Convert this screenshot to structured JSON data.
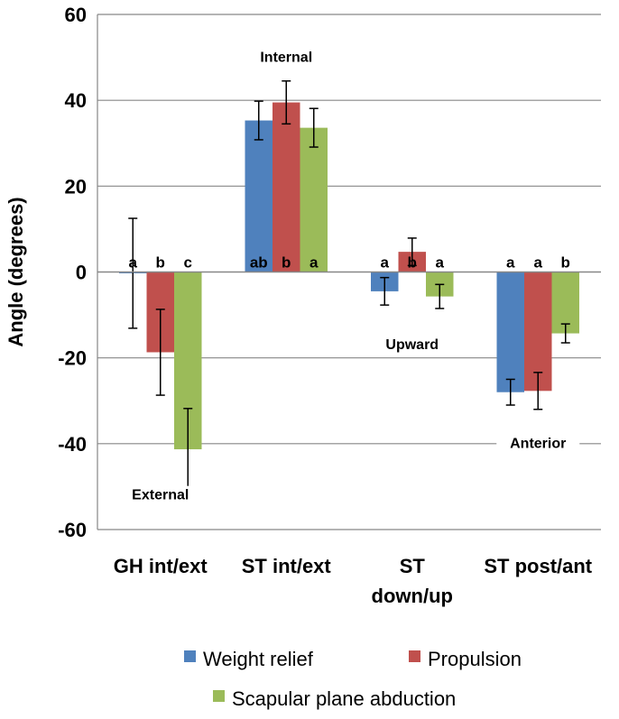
{
  "chart_data": {
    "type": "bar",
    "title": "",
    "xlabel": "",
    "ylabel": "Angle (degrees)",
    "ylim": [
      -60,
      60
    ],
    "yticks": [
      60,
      40,
      20,
      0,
      -20,
      -40,
      -60
    ],
    "categories": [
      "GH int/ext",
      "ST int/ext",
      "ST down/up",
      "ST post/ant"
    ],
    "category_lines": [
      [
        "GH int/ext"
      ],
      [
        "ST int/ext"
      ],
      [
        "ST",
        "down/up"
      ],
      [
        "ST post/ant"
      ]
    ],
    "series": [
      {
        "name": "Weight relief",
        "color": "#4F81BD",
        "values": [
          -0.3,
          35.3,
          -4.5,
          -28.0
        ],
        "errors": [
          12.8,
          4.5,
          3.2,
          3.0
        ],
        "sig": [
          "a",
          "ab",
          "a",
          "a"
        ]
      },
      {
        "name": "Propulsion",
        "color": "#C0504D",
        "values": [
          -18.7,
          39.5,
          4.7,
          -27.7
        ],
        "errors": [
          10.0,
          5.0,
          3.2,
          4.3
        ],
        "sig": [
          "b",
          "b",
          "b",
          "a"
        ]
      },
      {
        "name": "Scapular plane abduction",
        "color": "#9BBB59",
        "values": [
          -41.3,
          33.6,
          -5.7,
          -14.3
        ],
        "errors": [
          9.5,
          4.5,
          2.8,
          2.2
        ],
        "sig": [
          "c",
          "a",
          "a",
          "b"
        ]
      }
    ],
    "annotations": [
      {
        "text": "Internal",
        "category": 1,
        "y": 49
      },
      {
        "text": "Upward",
        "category": 2,
        "y": -18
      },
      {
        "text": "External",
        "category": 0,
        "y": -53
      },
      {
        "text": "Anterior",
        "category": 3,
        "y": -41
      }
    ],
    "legend_position": "bottom",
    "gridlines": true
  }
}
